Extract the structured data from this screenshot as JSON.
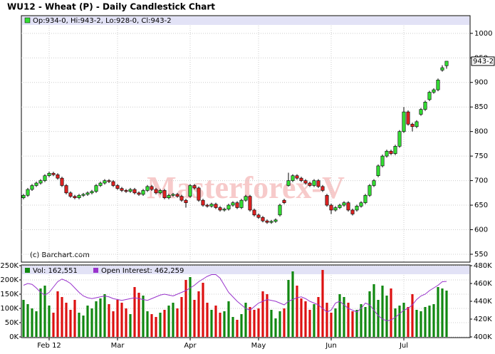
{
  "chart_data": {
    "type": "candlestick",
    "title": "WU12 - Wheat (P) - Daily Candlestick Chart",
    "legend_text": "Op:934-0, Hi:943-2, Lo:928-0, Cl:943-2",
    "last_label": "943-2",
    "watermark": "Masterforex-V",
    "credit": "(c) Barchart.com",
    "up_color": "#33dd33",
    "down_color": "#dd2222",
    "ylim": [
      534,
      1036
    ],
    "yticks": [
      550,
      600,
      650,
      700,
      750,
      800,
      850,
      900,
      950,
      1000
    ],
    "grid": true,
    "xticks": [
      {
        "value": 6,
        "label": "Feb 12"
      },
      {
        "value": 22,
        "label": "Mar"
      },
      {
        "value": 39,
        "label": "Apr"
      },
      {
        "value": 55,
        "label": "May"
      },
      {
        "value": 72,
        "label": "Jun"
      },
      {
        "value": 89,
        "label": "Jul"
      }
    ],
    "open": [
      665,
      670,
      682,
      690,
      695,
      700,
      710,
      715,
      712,
      705,
      690,
      675,
      668,
      665,
      670,
      672,
      675,
      678,
      690,
      695,
      700,
      698,
      690,
      684,
      680,
      678,
      682,
      675,
      672,
      680,
      688,
      682,
      675,
      680,
      665,
      670,
      672,
      668,
      660,
      668,
      690,
      685,
      660,
      650,
      648,
      652,
      645,
      640,
      642,
      650,
      655,
      645,
      660,
      668,
      640,
      630,
      625,
      618,
      615,
      617,
      630,
      660,
      690,
      700,
      710,
      705,
      700,
      695,
      690,
      700,
      688,
      670,
      650,
      640,
      645,
      650,
      655,
      640,
      640,
      648,
      655,
      670,
      690,
      710,
      730,
      750,
      760,
      755,
      770,
      800,
      840,
      815,
      810,
      835,
      845,
      865,
      880,
      885,
      925,
      934
    ],
    "high": [
      673,
      685,
      693,
      698,
      703,
      713,
      718,
      718,
      715,
      708,
      693,
      678,
      671,
      673,
      675,
      678,
      681,
      693,
      698,
      703,
      703,
      701,
      693,
      687,
      683,
      685,
      685,
      678,
      683,
      691,
      691,
      685,
      683,
      683,
      673,
      675,
      675,
      671,
      663,
      693,
      693,
      688,
      663,
      653,
      655,
      655,
      648,
      645,
      653,
      658,
      658,
      663,
      671,
      671,
      643,
      633,
      628,
      621,
      620,
      623,
      653,
      663,
      716,
      713,
      713,
      708,
      703,
      698,
      703,
      703,
      691,
      673,
      653,
      648,
      653,
      658,
      658,
      643,
      651,
      658,
      673,
      693,
      703,
      733,
      753,
      763,
      763,
      773,
      803,
      850,
      843,
      818,
      823,
      848,
      863,
      883,
      888,
      908,
      935,
      943.25
    ],
    "low": [
      662,
      667,
      679,
      687,
      692,
      697,
      707,
      709,
      702,
      687,
      672,
      665,
      662,
      662,
      667,
      669,
      672,
      675,
      687,
      692,
      695,
      687,
      681,
      677,
      675,
      675,
      672,
      669,
      669,
      677,
      679,
      672,
      672,
      662,
      662,
      667,
      665,
      657,
      645,
      665,
      682,
      657,
      647,
      645,
      645,
      642,
      637,
      637,
      639,
      647,
      642,
      642,
      657,
      637,
      627,
      622,
      615,
      612,
      612,
      614,
      627,
      652,
      688,
      697,
      702,
      697,
      692,
      687,
      687,
      685,
      677,
      647,
      632,
      637,
      642,
      647,
      637,
      629,
      637,
      645,
      652,
      667,
      687,
      707,
      727,
      747,
      752,
      752,
      767,
      797,
      812,
      800,
      807,
      832,
      842,
      862,
      877,
      882,
      922,
      928
    ],
    "close": [
      670,
      682,
      690,
      695,
      700,
      710,
      715,
      712,
      705,
      690,
      675,
      668,
      665,
      670,
      672,
      675,
      678,
      690,
      695,
      700,
      698,
      690,
      684,
      680,
      678,
      682,
      675,
      672,
      680,
      688,
      682,
      675,
      680,
      665,
      670,
      672,
      668,
      660,
      655,
      690,
      685,
      660,
      650,
      648,
      652,
      645,
      640,
      642,
      650,
      655,
      645,
      660,
      668,
      640,
      630,
      625,
      618,
      615,
      617,
      620,
      650,
      655,
      700,
      710,
      705,
      700,
      695,
      690,
      700,
      688,
      680,
      650,
      640,
      645,
      650,
      655,
      640,
      632,
      648,
      655,
      670,
      690,
      700,
      730,
      750,
      760,
      755,
      770,
      800,
      840,
      815,
      810,
      820,
      845,
      860,
      880,
      885,
      905,
      930,
      943.25
    ],
    "volume_legend": "Vol: 162,551",
    "volume_color_up": "#118811",
    "volume_color_down": "#dd1111",
    "volume": [
      130000,
      115000,
      100000,
      90000,
      170000,
      180000,
      110000,
      85000,
      160000,
      140000,
      120000,
      95000,
      130000,
      85000,
      75000,
      110000,
      100000,
      125000,
      135000,
      150000,
      115000,
      90000,
      130000,
      120000,
      100000,
      80000,
      175000,
      155000,
      145000,
      90000,
      80000,
      70000,
      85000,
      95000,
      110000,
      120000,
      100000,
      140000,
      200000,
      210000,
      130000,
      160000,
      190000,
      120000,
      95000,
      110000,
      85000,
      90000,
      125000,
      70000,
      60000,
      80000,
      120000,
      105000,
      95000,
      100000,
      160000,
      150000,
      95000,
      65000,
      90000,
      100000,
      200000,
      230000,
      180000,
      135000,
      125000,
      95000,
      115000,
      140000,
      235000,
      120000,
      85000,
      100000,
      150000,
      140000,
      120000,
      90000,
      95000,
      115000,
      105000,
      160000,
      185000,
      130000,
      180000,
      145000,
      170000,
      100000,
      110000,
      120000,
      105000,
      150000,
      95000,
      90000,
      105000,
      110000,
      115000,
      175000,
      170000,
      162551
    ],
    "vlim": [
      0,
      250000
    ],
    "vticks": [
      {
        "value": 0,
        "label": "0K"
      },
      {
        "value": 50000,
        "label": "50K"
      },
      {
        "value": 100000,
        "label": "100K"
      },
      {
        "value": 150000,
        "label": "150K"
      },
      {
        "value": 200000,
        "label": "200K"
      },
      {
        "value": 250000,
        "label": "250K"
      }
    ],
    "oi_legend": "Open Interest: 462,259",
    "oi_color": "#9933cc",
    "open_interest": [
      458000,
      460000,
      459000,
      455000,
      450000,
      447000,
      450000,
      456000,
      462000,
      465000,
      463000,
      460000,
      455000,
      450000,
      446000,
      444000,
      443000,
      444000,
      445000,
      446000,
      445000,
      443000,
      442000,
      441000,
      442000,
      443000,
      444000,
      443000,
      442000,
      441000,
      443000,
      445000,
      447000,
      448000,
      447000,
      446000,
      448000,
      450000,
      452000,
      455000,
      458000,
      462000,
      465000,
      468000,
      470000,
      470000,
      466000,
      458000,
      450000,
      445000,
      440000,
      436000,
      432000,
      430000,
      434000,
      438000,
      440000,
      442000,
      441000,
      440000,
      438000,
      436000,
      440000,
      442000,
      444000,
      445000,
      443000,
      440000,
      438000,
      436000,
      432000,
      428000,
      430000,
      438000,
      440000,
      436000,
      432000,
      430000,
      428000,
      432000,
      438000,
      436000,
      430000,
      424000,
      420000,
      418000,
      419000,
      422000,
      426000,
      430000,
      432000,
      436000,
      442000,
      446000,
      448000,
      452000,
      455000,
      458000,
      462000,
      462259
    ],
    "oilim": [
      400000,
      480000
    ],
    "oiticks": [
      {
        "value": 400000,
        "label": "400K"
      },
      {
        "value": 420000,
        "label": "420K"
      },
      {
        "value": 440000,
        "label": "440K"
      },
      {
        "value": 460000,
        "label": "460K"
      },
      {
        "value": 480000,
        "label": "480K"
      }
    ]
  }
}
